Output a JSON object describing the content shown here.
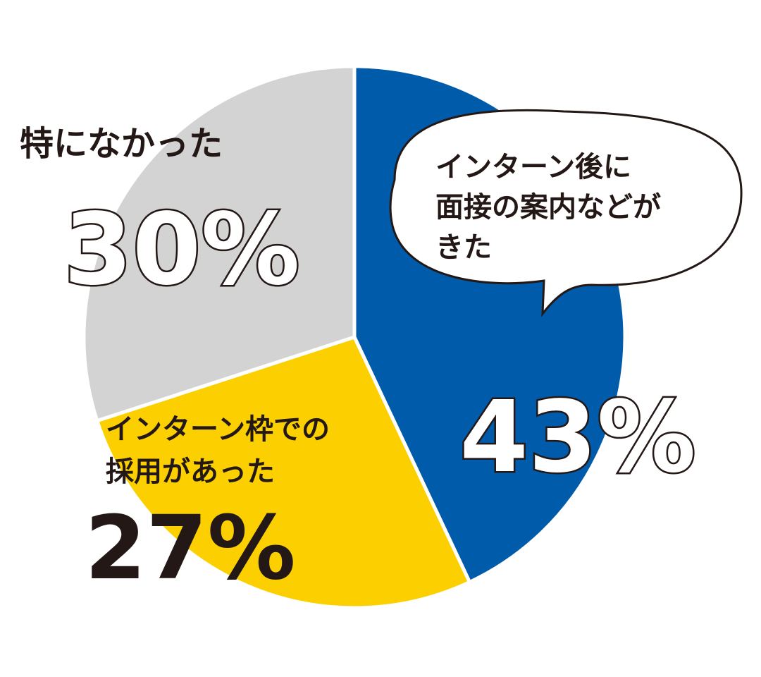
{
  "chart_data": {
    "type": "pie",
    "unit": "%",
    "start_angle_deg": 0,
    "direction": "clockwise",
    "slices": [
      {
        "id": "interview",
        "label_lines": [
          "インターン後に",
          "面接の案内などが",
          "きた"
        ],
        "value": 43,
        "display": "43%",
        "color": "#005bab"
      },
      {
        "id": "hiring",
        "label_lines": [
          "インターン枠での",
          "採用があった"
        ],
        "value": 27,
        "display": "27%",
        "color": "#fcd000"
      },
      {
        "id": "none",
        "label_lines": [
          "特になかった"
        ],
        "value": 30,
        "display": "30%",
        "color": "#d3d3d3"
      }
    ]
  }
}
